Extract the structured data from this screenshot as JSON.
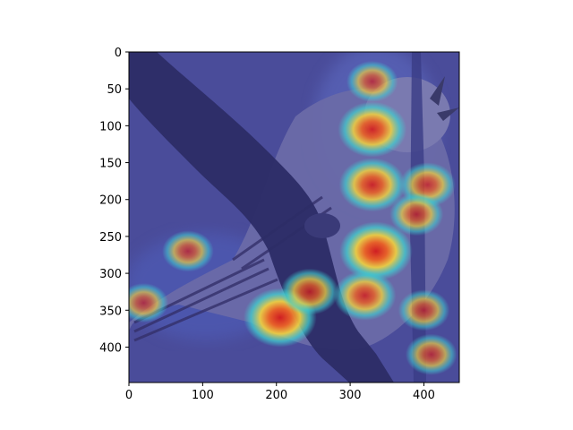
{
  "chart_data": {
    "type": "heatmap",
    "description_units": "pixels (image coordinates)",
    "x_ticks": [
      0,
      100,
      200,
      300,
      400
    ],
    "y_ticks": [
      0,
      50,
      100,
      150,
      200,
      250,
      300,
      350,
      400
    ],
    "xlim": [
      0,
      448
    ],
    "ylim": [
      448,
      0
    ],
    "colormap": "jet",
    "hotspots": [
      {
        "x": 330,
        "y": 105,
        "intensity": 0.85
      },
      {
        "x": 405,
        "y": 180,
        "intensity": 0.55
      },
      {
        "x": 330,
        "y": 180,
        "intensity": 0.8
      },
      {
        "x": 335,
        "y": 270,
        "intensity": 0.95
      },
      {
        "x": 320,
        "y": 330,
        "intensity": 0.7
      },
      {
        "x": 205,
        "y": 360,
        "intensity": 0.95
      },
      {
        "x": 245,
        "y": 325,
        "intensity": 0.6
      },
      {
        "x": 400,
        "y": 350,
        "intensity": 0.45
      },
      {
        "x": 410,
        "y": 410,
        "intensity": 0.45
      },
      {
        "x": 80,
        "y": 270,
        "intensity": 0.45
      },
      {
        "x": 20,
        "y": 340,
        "intensity": 0.4
      },
      {
        "x": 330,
        "y": 40,
        "intensity": 0.45
      },
      {
        "x": 390,
        "y": 220,
        "intensity": 0.5
      }
    ]
  },
  "colors": {
    "base": "#3a3c8c",
    "branch": "#2a2a5e",
    "bird_body": "#6a6aa0",
    "hot": "#e03020",
    "warm": "#f0d040",
    "cool": "#40c8d8"
  }
}
